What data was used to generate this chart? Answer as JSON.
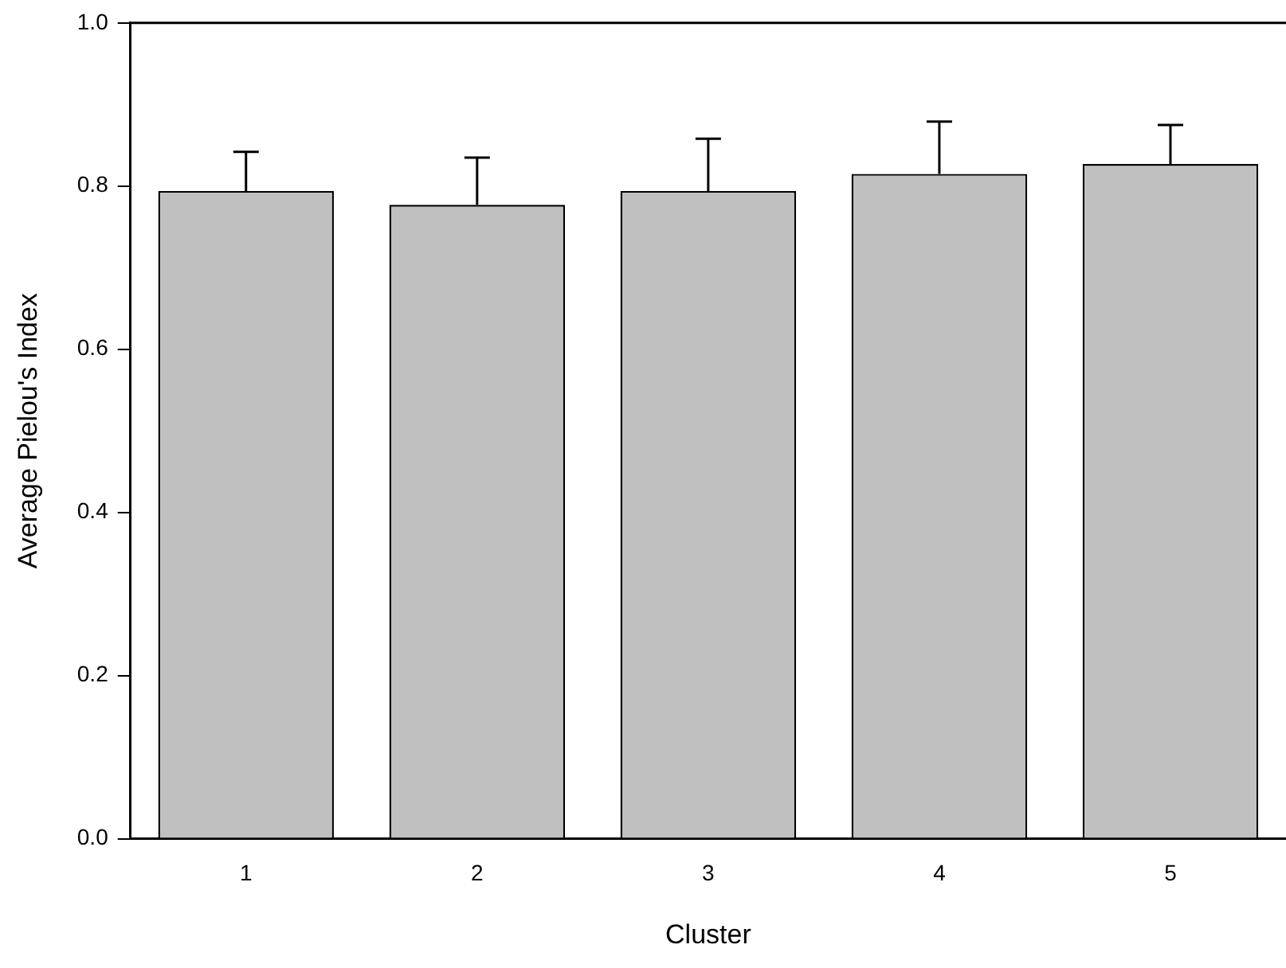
{
  "chart_data": {
    "type": "bar",
    "xlabel": "Cluster",
    "ylabel": "Average Pielou's Index",
    "categories": [
      "1",
      "2",
      "3",
      "4",
      "5"
    ],
    "values": [
      0.794,
      0.777,
      0.794,
      0.815,
      0.827
    ],
    "errors": [
      [
        0.794,
        0.842
      ],
      [
        0.777,
        0.835
      ],
      [
        0.794,
        0.858
      ],
      [
        0.815,
        0.879
      ],
      [
        0.827,
        0.875
      ]
    ],
    "color": "#c0c0c0",
    "ylim": [
      0,
      1
    ],
    "yticks": [
      {
        "value": 0,
        "label": "0.0"
      },
      {
        "value": 0.2,
        "label": "0.2"
      },
      {
        "value": 0.4,
        "label": "0.4"
      },
      {
        "value": 0.6,
        "label": "0.6"
      },
      {
        "value": 0.8,
        "label": "0.8"
      },
      {
        "value": 1,
        "label": "1.0"
      }
    ],
    "grid": false,
    "legend": false
  }
}
